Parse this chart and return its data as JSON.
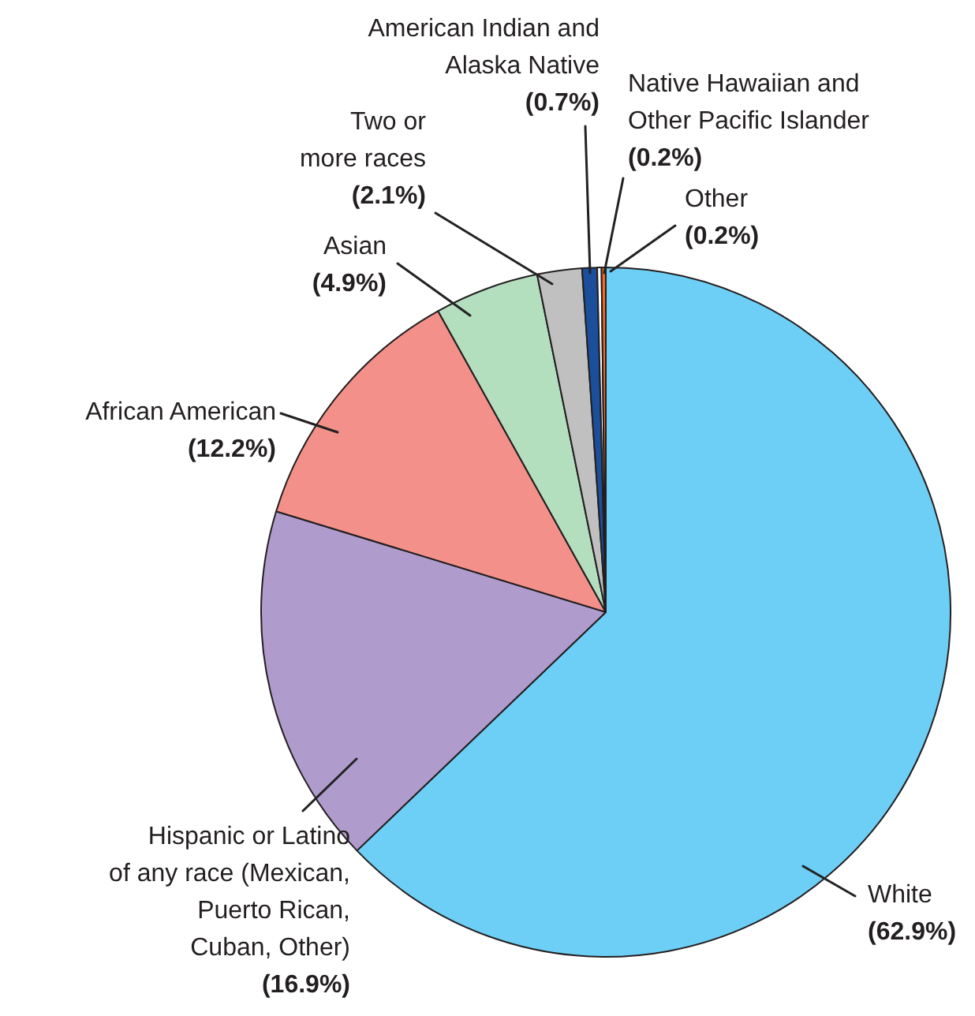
{
  "chart_data": {
    "type": "pie",
    "categories": [
      "White",
      "Hispanic or Latino of any race (Mexican, Puerto Rican, Cuban, Other)",
      "African American",
      "Asian",
      "Two or more races",
      "American Indian and Alaska Native",
      "Native Hawaiian and Other Pacific Islander",
      "Other"
    ],
    "values": [
      62.9,
      16.9,
      12.2,
      4.9,
      2.1,
      0.7,
      0.2,
      0.2
    ],
    "value_labels": [
      "(62.9%)",
      "(16.9%)",
      "(12.2%)",
      "(4.9%)",
      "(2.1%)",
      "(0.7%)",
      "(0.2%)",
      "(0.2%)"
    ],
    "colors": [
      "#6ecff6",
      "#b09ccc",
      "#f4908a",
      "#b4dfbf",
      "#c0c0c0",
      "#1b4f9c",
      "#ffffff",
      "#f26b21"
    ],
    "legend": false
  }
}
